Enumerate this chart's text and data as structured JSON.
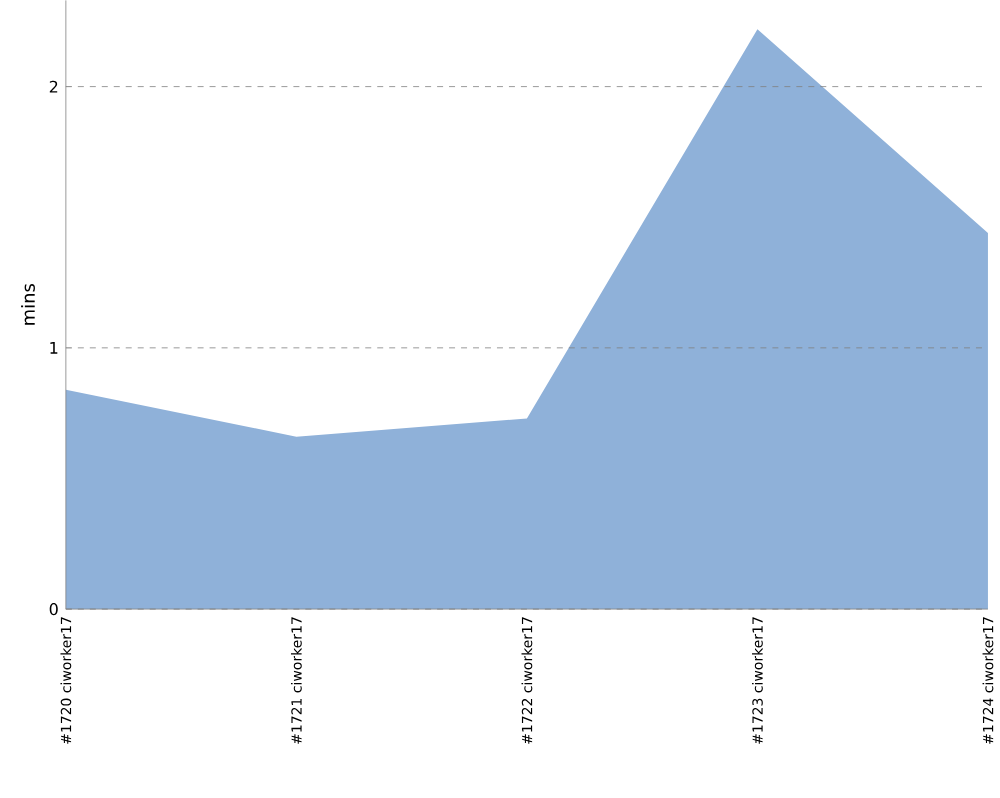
{
  "chart_data": {
    "type": "area",
    "ylabel": "mins",
    "categories": [
      "#1720 ciworker17",
      "#1721 ciworker17",
      "#1722 ciworker17",
      "#1723 ciworker17",
      "#1724 ciworker17"
    ],
    "values": [
      0.84,
      0.66,
      0.73,
      2.22,
      1.44
    ],
    "color": "#8fb1d9",
    "ylim": [
      0,
      2.33
    ],
    "yticks": [
      0,
      1,
      2
    ],
    "grid": "y"
  }
}
